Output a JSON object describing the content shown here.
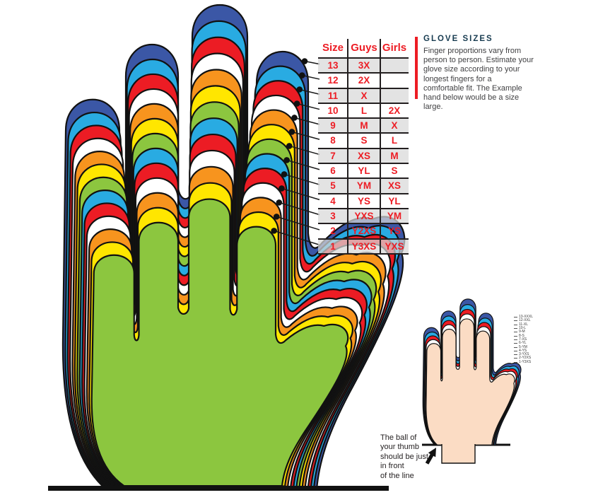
{
  "info": {
    "title": "GLOVE SIZES",
    "body": "Finger proportions vary from person to person. Estimate your glove size according to your longest fingers for a comfortable fit. The Example hand below would be a size large."
  },
  "table": {
    "headers": [
      "Size",
      "Guys",
      "Girls"
    ],
    "rows": [
      {
        "size": "13",
        "guys": "3X",
        "girls": ""
      },
      {
        "size": "12",
        "guys": "2X",
        "girls": ""
      },
      {
        "size": "11",
        "guys": "X",
        "girls": ""
      },
      {
        "size": "10",
        "guys": "L",
        "girls": "2X"
      },
      {
        "size": "9",
        "guys": "M",
        "girls": "X"
      },
      {
        "size": "8",
        "guys": "S",
        "girls": "L"
      },
      {
        "size": "7",
        "guys": "XS",
        "girls": "M"
      },
      {
        "size": "6",
        "guys": "YL",
        "girls": "S"
      },
      {
        "size": "5",
        "guys": "YM",
        "girls": "XS"
      },
      {
        "size": "4",
        "guys": "YS",
        "girls": "YL"
      },
      {
        "size": "3",
        "guys": "YXS",
        "girls": "YM"
      },
      {
        "size": "2",
        "guys": "Y2XS",
        "girls": "YS"
      },
      {
        "size": "1",
        "guys": "Y3XS",
        "girls": "YXS"
      }
    ]
  },
  "glove_layers": [
    {
      "size": 13,
      "color": "#3b57a6"
    },
    {
      "size": 12,
      "color": "#29abe2"
    },
    {
      "size": 11,
      "color": "#ec1c24"
    },
    {
      "size": 10,
      "color": "#ffffff"
    },
    {
      "size": 9,
      "color": "#f7941e"
    },
    {
      "size": 8,
      "color": "#ffe600"
    },
    {
      "size": 7,
      "color": "#8cc63f"
    },
    {
      "size": 6,
      "color": "#29abe2"
    },
    {
      "size": 5,
      "color": "#ec1c24"
    },
    {
      "size": 4,
      "color": "#ffffff"
    },
    {
      "size": 3,
      "color": "#f7941e"
    },
    {
      "size": 2,
      "color": "#ffe600"
    },
    {
      "size": 1,
      "color": "#8cc63f"
    }
  ],
  "example_hand": {
    "labels": [
      "13-XXXL",
      "12-XXL",
      "11-XL",
      "10-L",
      "9-M",
      "8-S",
      "7-XS",
      "6-YL",
      "5-YM",
      "4-YS",
      "3-YXS",
      "2-Y2XS",
      "1-Y3XS"
    ],
    "note_lines": [
      "The ball of",
      "your thumb",
      "should be just",
      "in front",
      "of the line"
    ]
  },
  "colors": {
    "blue": "#3b57a6",
    "cyan": "#29abe2",
    "red": "#ec1c24",
    "white": "#ffffff",
    "orange": "#f7941e",
    "yellow": "#ffe600",
    "green": "#8cc63f",
    "skin": "#fbdcc4",
    "outline": "#111111",
    "table_line": "#231f20",
    "accent_red": "#ed1c24",
    "title_navy": "#173b50"
  }
}
